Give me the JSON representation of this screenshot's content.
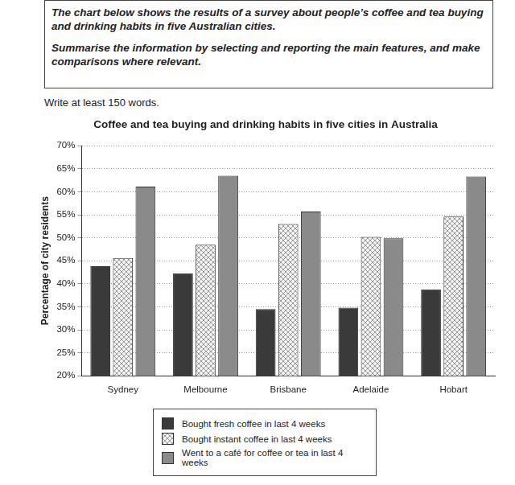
{
  "header": {
    "prompt": [
      "The chart below shows the results of a survey about people’s coffee and tea buying and drinking habits in five Australian cities.",
      "Summarise the information by selecting and reporting the main features, and make comparisons where relevant."
    ],
    "instruction": "Write at least 150 words."
  },
  "chart_data": {
    "type": "bar",
    "title": "Coffee and tea buying and drinking habits in five cities in Australia",
    "y_label": "Percentage of city residents",
    "categories": [
      "Sydney",
      "Melbourne",
      "Brisbane",
      "Adelaide",
      "Hobart"
    ],
    "series": [
      {
        "name": "Bought fresh coffee in last 4 weeks",
        "color": "#3a3a3a",
        "values": [
          43.8,
          42.3,
          34.5,
          34.8,
          38.8
        ]
      },
      {
        "name": "Bought instant coffee in last 4 weeks",
        "color": "#d9d9d9",
        "values": [
          45.6,
          48.5,
          53,
          50.2,
          54.6
        ]
      },
      {
        "name": "Went to a café for coffee or tea in last 4 weeks",
        "color": "#8a8a8a",
        "values": [
          61.1,
          63.5,
          55.7,
          49.9,
          63.3
        ]
      }
    ],
    "ylim": [
      20,
      70
    ],
    "yticks": [
      {
        "value": 20,
        "label": "20%"
      },
      {
        "value": 25,
        "label": "25%"
      },
      {
        "value": 30,
        "label": "30%"
      },
      {
        "value": 35,
        "label": "35%"
      },
      {
        "value": 40,
        "label": "40%"
      },
      {
        "value": 45,
        "label": "45%"
      },
      {
        "value": 50,
        "label": "50%"
      },
      {
        "value": 55,
        "label": "55%"
      },
      {
        "value": 60,
        "label": "60%"
      },
      {
        "value": 65,
        "label": "65%"
      },
      {
        "value": 70,
        "label": "70%"
      }
    ],
    "grid": true,
    "legend": "bottom"
  }
}
